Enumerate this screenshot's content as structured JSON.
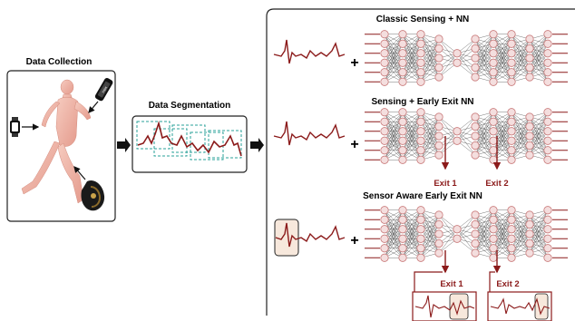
{
  "collection": {
    "title": "Data Collection"
  },
  "segmentation": {
    "title": "Data Segmentation"
  },
  "rows": [
    {
      "title": "Classic Sensing + NN",
      "exits": []
    },
    {
      "title": "Sensing + Early Exit NN",
      "exits": [
        "Exit 1",
        "Exit 2"
      ]
    },
    {
      "title": "Sensor Aware Early Exit NN",
      "exits": [
        "Exit 1",
        "Exit 2"
      ]
    }
  ],
  "plus_symbol": "+",
  "colors": {
    "accent": "#8b1a1a",
    "node_fill": "#f4dede",
    "node_stroke": "#c97a7a",
    "segment_box": "#2aa198",
    "body": "#f2b8ad"
  },
  "icons": [
    "smartwatch-icon",
    "phone-armband-icon",
    "knee-brace-sensor-icon",
    "right-arrow-icon"
  ]
}
